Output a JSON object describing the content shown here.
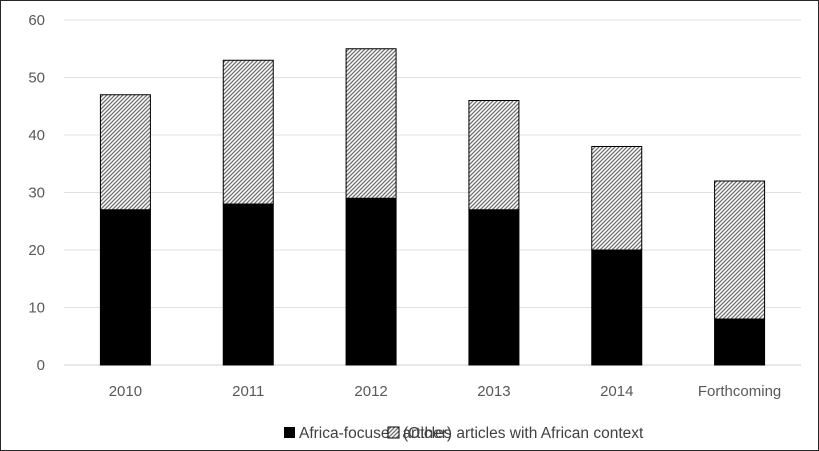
{
  "chart_data": {
    "type": "bar",
    "stacked": true,
    "categories": [
      "2010",
      "2011",
      "2012",
      "2013",
      "2014",
      "Forthcoming"
    ],
    "series": [
      {
        "name": "Africa-focused articles",
        "values": [
          27,
          28,
          29,
          27,
          20,
          8
        ],
        "color": "#000000",
        "fill": "solid"
      },
      {
        "name": "(Other) articles with African context",
        "values": [
          20,
          25,
          26,
          19,
          18,
          24
        ],
        "color": "#7f7f7f",
        "fill": "diagonal-hatch"
      }
    ],
    "title": "",
    "xlabel": "",
    "ylabel": "",
    "ylim": [
      0,
      60
    ],
    "yticks": [
      0,
      10,
      20,
      30,
      40,
      50,
      60
    ],
    "grid": true,
    "legend_position": "bottom"
  }
}
